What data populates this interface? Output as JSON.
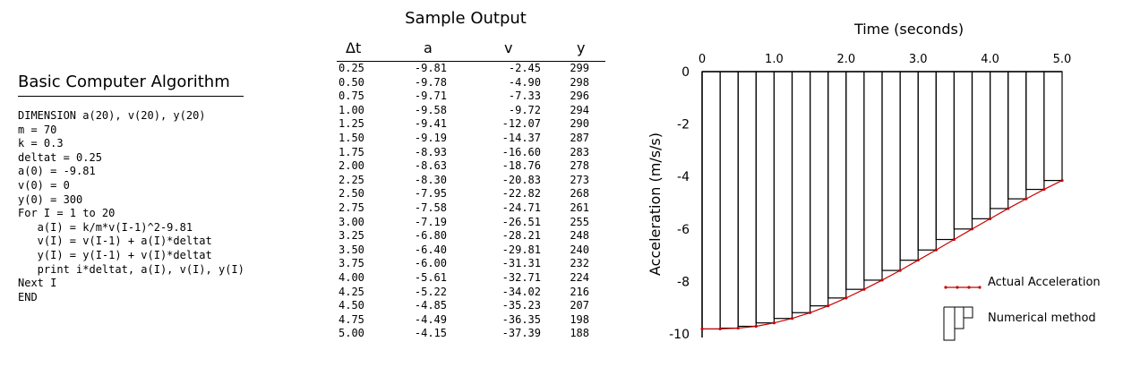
{
  "algorithm": {
    "title": "Basic Computer Algorithm",
    "code": [
      "DIMENSION a(20), v(20), y(20)",
      "m = 70",
      "k = 0.3",
      "deltat = 0.25",
      "a(0) = -9.81",
      "v(0) = 0",
      "y(0) = 300",
      "For I = 1 to 20",
      "   a(I) = k/m*v(I-1)^2-9.81",
      "   v(I) = v(I-1) + a(I)*deltat",
      "   y(I) = y(I-1) + v(I)*deltat",
      "   print i*deltat, a(I), v(I), y(I)",
      "Next I",
      "END"
    ]
  },
  "sample_output": {
    "title": "Sample Output",
    "headers": [
      "Δt",
      "a",
      "v",
      "y"
    ],
    "rows": [
      [
        "0.25",
        "-9.81",
        "-2.45",
        "299"
      ],
      [
        "0.50",
        "-9.78",
        "-4.90",
        "298"
      ],
      [
        "0.75",
        "-9.71",
        "-7.33",
        "296"
      ],
      [
        "1.00",
        "-9.58",
        "-9.72",
        "294"
      ],
      [
        "1.25",
        "-9.41",
        "-12.07",
        "290"
      ],
      [
        "1.50",
        "-9.19",
        "-14.37",
        "287"
      ],
      [
        "1.75",
        "-8.93",
        "-16.60",
        "283"
      ],
      [
        "2.00",
        "-8.63",
        "-18.76",
        "278"
      ],
      [
        "2.25",
        "-8.30",
        "-20.83",
        "273"
      ],
      [
        "2.50",
        "-7.95",
        "-22.82",
        "268"
      ],
      [
        "2.75",
        "-7.58",
        "-24.71",
        "261"
      ],
      [
        "3.00",
        "-7.19",
        "-26.51",
        "255"
      ],
      [
        "3.25",
        "-6.80",
        "-28.21",
        "248"
      ],
      [
        "3.50",
        "-6.40",
        "-29.81",
        "240"
      ],
      [
        "3.75",
        "-6.00",
        "-31.31",
        "232"
      ],
      [
        "4.00",
        "-5.61",
        "-32.71",
        "224"
      ],
      [
        "4.25",
        "-5.22",
        "-34.02",
        "216"
      ],
      [
        "4.50",
        "-4.85",
        "-35.23",
        "207"
      ],
      [
        "4.75",
        "-4.49",
        "-36.35",
        "198"
      ],
      [
        "5.00",
        "-4.15",
        "-37.39",
        "188"
      ]
    ]
  },
  "chart_data": {
    "type": "bar",
    "title": "",
    "xlabel": "Time (seconds)",
    "ylabel": "Acceleration (m/s/s)",
    "xlim": [
      0,
      5
    ],
    "ylim": [
      -10,
      0
    ],
    "x_ticks": [
      "0",
      "1.0",
      "2.0",
      "3.0",
      "4.0",
      "5.0"
    ],
    "y_ticks": [
      "0",
      "-2",
      "-4",
      "-6",
      "-8",
      "-10"
    ],
    "x_axis_position": "top",
    "legend_position": "bottom-right",
    "series": [
      {
        "name": "Actual Acceleration",
        "kind": "line",
        "color": "#cc0000",
        "x": [
          0,
          0.25,
          0.5,
          0.75,
          1.0,
          1.25,
          1.5,
          1.75,
          2.0,
          2.25,
          2.5,
          2.75,
          3.0,
          3.25,
          3.5,
          3.75,
          4.0,
          4.25,
          4.5,
          4.75,
          5.0
        ],
        "y": [
          -9.81,
          -9.81,
          -9.78,
          -9.71,
          -9.58,
          -9.41,
          -9.19,
          -8.93,
          -8.63,
          -8.3,
          -7.95,
          -7.58,
          -7.19,
          -6.8,
          -6.4,
          -6.0,
          -5.61,
          -5.22,
          -4.85,
          -4.49,
          -4.15
        ]
      },
      {
        "name": "Numerical method",
        "kind": "step-bars",
        "color": "#000000",
        "x": [
          0.25,
          0.5,
          0.75,
          1.0,
          1.25,
          1.5,
          1.75,
          2.0,
          2.25,
          2.5,
          2.75,
          3.0,
          3.25,
          3.5,
          3.75,
          4.0,
          4.25,
          4.5,
          4.75,
          5.0
        ],
        "y": [
          -9.81,
          -9.78,
          -9.71,
          -9.58,
          -9.41,
          -9.19,
          -8.93,
          -8.63,
          -8.3,
          -7.95,
          -7.58,
          -7.19,
          -6.8,
          -6.4,
          -6.0,
          -5.61,
          -5.22,
          -4.85,
          -4.49,
          -4.15
        ]
      }
    ]
  }
}
